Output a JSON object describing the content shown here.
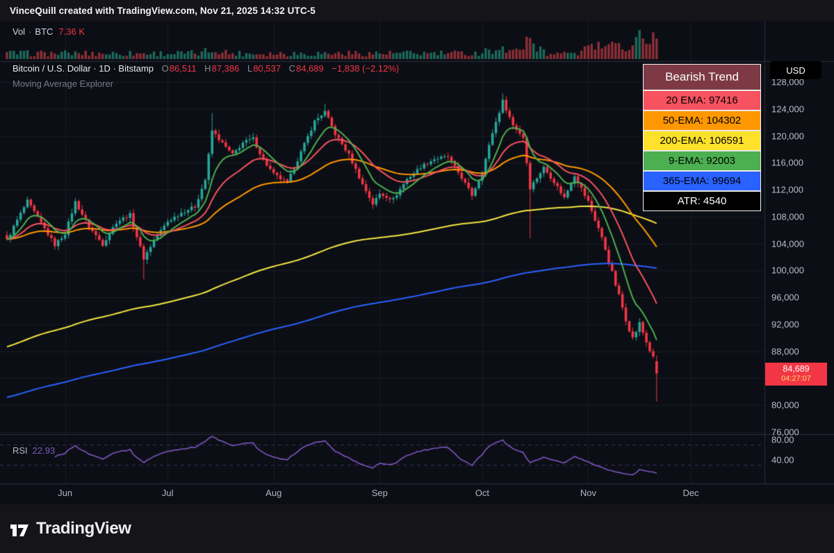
{
  "topbar": {
    "title": "VinceQuill created with TradingView.com, Nov 21, 2025 14:32 UTC-5"
  },
  "volume_pane": {
    "label": "Vol",
    "separator": "·",
    "symbol": "BTC",
    "value": "7.36 K"
  },
  "symbol_line": {
    "title": "Bitcoin / U.S. Dollar · 1D · Bitstamp",
    "o_label": "O",
    "o": "86,511",
    "h_label": "H",
    "h": "87,386",
    "l_label": "L",
    "l": "80,537",
    "c_label": "C",
    "c": "84,689",
    "change": "−1,838 (−2.12%)"
  },
  "subtitle": "Moving Average Explorer",
  "legend": {
    "header": "Bearish Trend",
    "header_bg": "#7d3a44",
    "rows": [
      {
        "label": "20 EMA",
        "value": "97416",
        "bg": "#f7525f",
        "fg": "#000000"
      },
      {
        "label": "50-EMA",
        "value": "104302",
        "bg": "#ff9800",
        "fg": "#000000"
      },
      {
        "label": "200-EMA",
        "value": "106591",
        "bg": "#ffe12b",
        "fg": "#000000"
      },
      {
        "label": "9-EMA",
        "value": "92003",
        "bg": "#4caf50",
        "fg": "#000000"
      },
      {
        "label": "365-EMA",
        "value": "99694",
        "bg": "#2962ff",
        "fg": "#000000"
      },
      {
        "label": "ATR",
        "value": "4540",
        "bg": "#000000",
        "fg": "#ffffff"
      }
    ]
  },
  "axis": {
    "currency": "USD",
    "price_labels": [
      "128,000",
      "124,000",
      "120,000",
      "116,000",
      "112,000",
      "108,000",
      "104,000",
      "100,000",
      "96,000",
      "92,000",
      "88,000",
      "80,000",
      "76,000"
    ],
    "rsi_labels": [
      "80.00",
      "40.00"
    ],
    "time_labels": [
      "Jun",
      "Jul",
      "Aug",
      "Sep",
      "Oct",
      "Nov",
      "Dec"
    ],
    "price_badge": {
      "price": "84,689",
      "countdown": "04:27:07"
    }
  },
  "rsi_pane": {
    "label": "RSI",
    "value": "22.93"
  },
  "footer": {
    "brand": "TradingView"
  },
  "colors": {
    "up": "#26a69a",
    "down": "#f23645",
    "ema9": "#4caf50",
    "ema20": "#f7525f",
    "ema50": "#ff9800",
    "ema200": "#f5e642",
    "ema365": "#2962ff",
    "rsi": "#7e57c2"
  },
  "chart_data": {
    "type": "candlestick",
    "title": "Bitcoin / U.S. Dollar, 1D, Bitstamp",
    "last": {
      "open": 86511,
      "high": 87386,
      "low": 80537,
      "close": 84689,
      "change": -1838,
      "change_pct": -2.12
    },
    "price_axis": {
      "min": 76000,
      "max": 128000,
      "step": 4000
    },
    "time_axis": {
      "labels": [
        "Jun",
        "Jul",
        "Aug",
        "Sep",
        "Oct",
        "Nov",
        "Dec"
      ],
      "label_days": [
        17,
        47,
        78,
        109,
        139,
        170,
        200
      ],
      "last_candle_day": 190
    },
    "anchors_close_k": [
      [
        0,
        104.5
      ],
      [
        3,
        107.5
      ],
      [
        6,
        110.3
      ],
      [
        10,
        107.0
      ],
      [
        14,
        103.8
      ],
      [
        17,
        105.5
      ],
      [
        20,
        110.2
      ],
      [
        24,
        106.5
      ],
      [
        28,
        103.9
      ],
      [
        32,
        107.2
      ],
      [
        36,
        108.3
      ],
      [
        40,
        101.8
      ],
      [
        43,
        104.5
      ],
      [
        47,
        107.3
      ],
      [
        51,
        108.6
      ],
      [
        55,
        109.5
      ],
      [
        58,
        113.5
      ],
      [
        60,
        120.8
      ],
      [
        63,
        118.9
      ],
      [
        66,
        117.2
      ],
      [
        69,
        119.0
      ],
      [
        72,
        119.6
      ],
      [
        75,
        116.4
      ],
      [
        78,
        114.3
      ],
      [
        82,
        113.0
      ],
      [
        86,
        117.6
      ],
      [
        90,
        122.2
      ],
      [
        93,
        123.6
      ],
      [
        96,
        120.3
      ],
      [
        100,
        117.2
      ],
      [
        104,
        112.8
      ],
      [
        107,
        109.9
      ],
      [
        109,
        111.4
      ],
      [
        113,
        110.6
      ],
      [
        117,
        113.6
      ],
      [
        121,
        115.4
      ],
      [
        125,
        116.6
      ],
      [
        129,
        116.9
      ],
      [
        133,
        113.8
      ],
      [
        136,
        111.2
      ],
      [
        139,
        114.6
      ],
      [
        142,
        120.5
      ],
      [
        145,
        125.2
      ],
      [
        148,
        121.6
      ],
      [
        151,
        119.8
      ],
      [
        153,
        112.3
      ],
      [
        157,
        115.3
      ],
      [
        160,
        113.2
      ],
      [
        163,
        110.8
      ],
      [
        166,
        114.2
      ],
      [
        170,
        110.2
      ],
      [
        173,
        106.3
      ],
      [
        175,
        103.2
      ],
      [
        177,
        99.6
      ],
      [
        179,
        96.2
      ],
      [
        181,
        92.8
      ],
      [
        183,
        89.9
      ],
      [
        185,
        92.1
      ],
      [
        187,
        89.4
      ],
      [
        189,
        86.9
      ],
      [
        190,
        84.689
      ]
    ],
    "wick_overrides_k": {
      "40": {
        "low": 98.7
      },
      "60": {
        "high": 123.4
      },
      "93": {
        "high": 124.8
      },
      "145": {
        "high": 126.3
      },
      "153": {
        "low": 104.8
      }
    },
    "overlays": [
      {
        "name": "200-EMA",
        "period": 200,
        "color": "#f5e642",
        "seed_k": 88.5,
        "last": 106591
      },
      {
        "name": "365-EMA",
        "period": 365,
        "color": "#2962ff",
        "seed_k": 81.0,
        "last": 99694
      },
      {
        "name": "50-EMA",
        "period": 50,
        "color": "#ff9800",
        "seed_k": null,
        "last": 104302
      },
      {
        "name": "20 EMA",
        "period": 20,
        "color": "#f7525f",
        "seed_k": null,
        "last": 97416
      },
      {
        "name": "9-EMA",
        "period": 9,
        "color": "#4caf50",
        "seed_k": null,
        "last": 92003
      }
    ],
    "atr": 4540,
    "rsi": {
      "period": 14,
      "value": 22.93,
      "bands": [
        70,
        30
      ],
      "color": "#7e57c2"
    },
    "volume": {
      "last_label": "7.36 K",
      "up_color": "rgba(42,166,138,0.6)",
      "down_color": "rgba(230,70,78,0.6)"
    }
  }
}
